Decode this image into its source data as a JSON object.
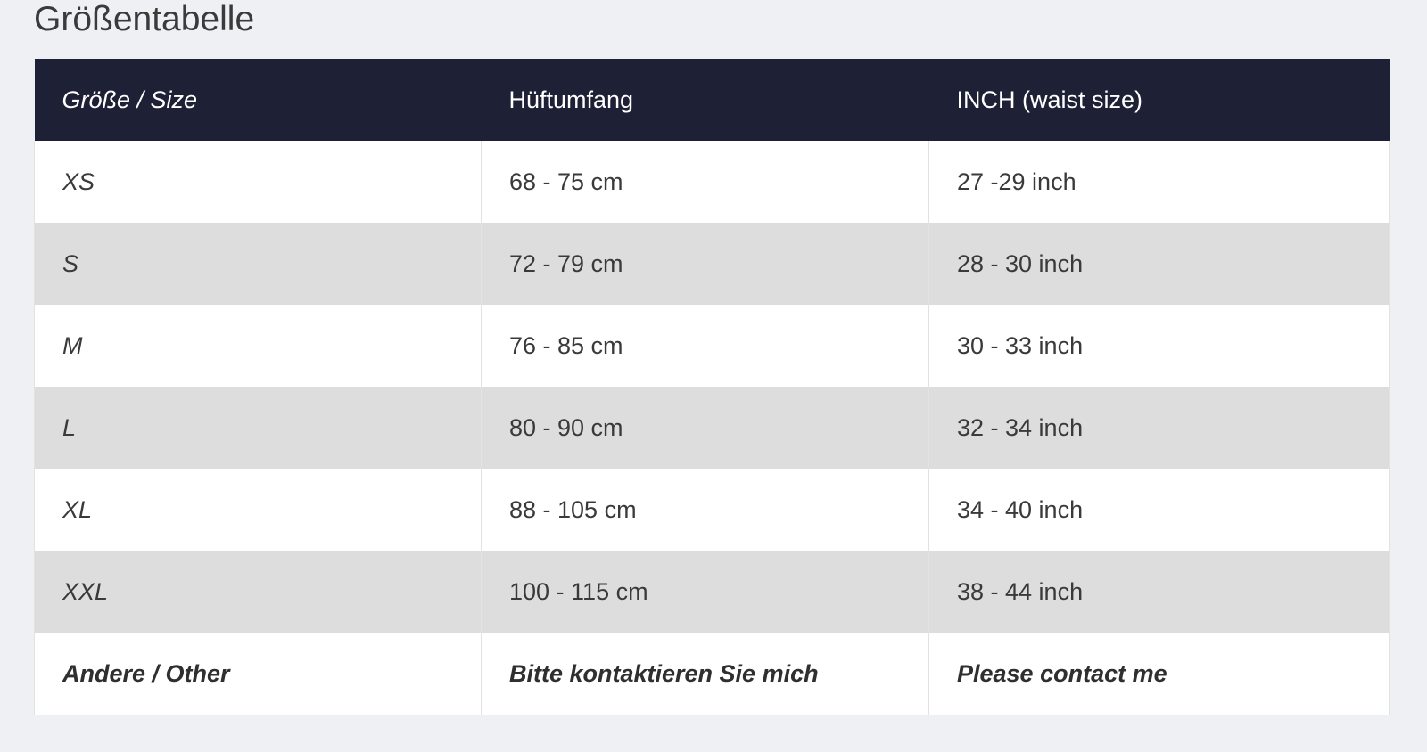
{
  "title": "Größentabelle",
  "table": {
    "headers": [
      "Größe / Size",
      "Hüftumfang",
      "INCH (waist size)"
    ],
    "rows": [
      [
        "XS",
        "68 - 75 cm",
        "27 -29 inch"
      ],
      [
        "S",
        "72 - 79 cm",
        "28 - 30 inch"
      ],
      [
        "M",
        "76 - 85 cm",
        "30 - 33 inch"
      ],
      [
        "L",
        "80 - 90 cm",
        "32 - 34 inch"
      ],
      [
        "XL",
        "88 - 105 cm",
        "34 - 40 inch"
      ],
      [
        "XXL",
        "100 - 115 cm",
        "38 - 44 inch"
      ],
      [
        "Andere / Other",
        "Bitte kontaktieren Sie mich",
        "Please contact me"
      ]
    ]
  },
  "colors": {
    "header_bg": "#1e2035",
    "stripe": "#dddddd",
    "page_bg": "#eff0f4"
  }
}
